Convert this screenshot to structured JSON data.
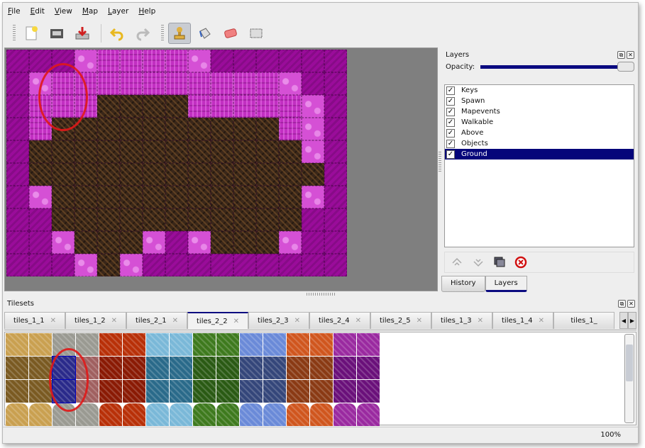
{
  "menu": [
    {
      "u": "F",
      "rest": "ile"
    },
    {
      "u": "E",
      "rest": "dit"
    },
    {
      "u": "V",
      "rest": "iew"
    },
    {
      "u": "M",
      "rest": "ap"
    },
    {
      "u": "L",
      "rest": "ayer"
    },
    {
      "u": "H",
      "rest": "elp"
    }
  ],
  "toolbar": [
    "new-icon",
    "open-icon",
    "save-icon",
    "undo-icon",
    "redo-icon",
    "stamp-brush-icon",
    "bucket-fill-icon",
    "eraser-icon",
    "rectangle-select-icon"
  ],
  "layers_panel": {
    "title": "Layers",
    "opacity_label": "Opacity:",
    "opacity": 1.0,
    "layers": [
      {
        "name": "Keys",
        "visible": true
      },
      {
        "name": "Spawn",
        "visible": true
      },
      {
        "name": "Mapevents",
        "visible": true
      },
      {
        "name": "Walkable",
        "visible": true
      },
      {
        "name": "Above",
        "visible": true
      },
      {
        "name": "Objects",
        "visible": true
      },
      {
        "name": "Ground",
        "visible": true,
        "selected": true
      }
    ],
    "tabs": [
      "History",
      "Layers"
    ],
    "active_tab": "Layers"
  },
  "tilesets_panel": {
    "title": "Tilesets",
    "tabs": [
      "tiles_1_1",
      "tiles_1_2",
      "tiles_2_1",
      "tiles_2_2",
      "tiles_2_3",
      "tiles_2_4",
      "tiles_2_5",
      "tiles_1_3",
      "tiles_1_4",
      "tiles_1_"
    ],
    "active_tab": "tiles_2_2"
  },
  "status": {
    "zoom": "100%"
  },
  "colors": {
    "selection": "#05057a",
    "annotation_ring": "#e01818",
    "background_canvas": "#7f7f7f"
  }
}
